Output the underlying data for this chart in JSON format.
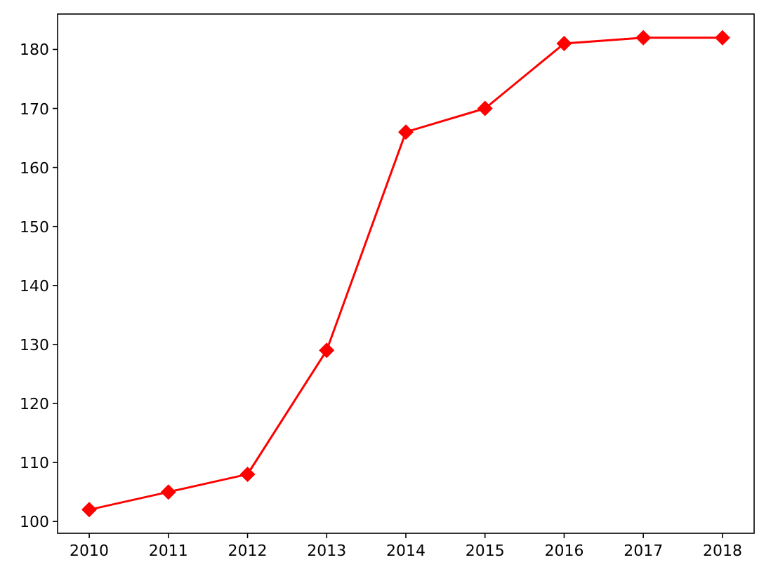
{
  "chart_data": {
    "type": "line",
    "x": [
      2010,
      2011,
      2012,
      2013,
      2014,
      2015,
      2016,
      2017,
      2018
    ],
    "series": [
      {
        "color": "#ff0000",
        "values": [
          102,
          105,
          108,
          129,
          166,
          170,
          181,
          182,
          182
        ]
      }
    ],
    "xlim": [
      2009.6,
      2018.4
    ],
    "xticks": [
      2010,
      2011,
      2012,
      2013,
      2014,
      2015,
      2016,
      2017,
      2018
    ],
    "ylim": [
      98,
      186
    ],
    "yticks": [
      100,
      110,
      120,
      130,
      140,
      150,
      160,
      170,
      180
    ],
    "marker": "diamond",
    "line_style": "solid",
    "grid": false
  }
}
